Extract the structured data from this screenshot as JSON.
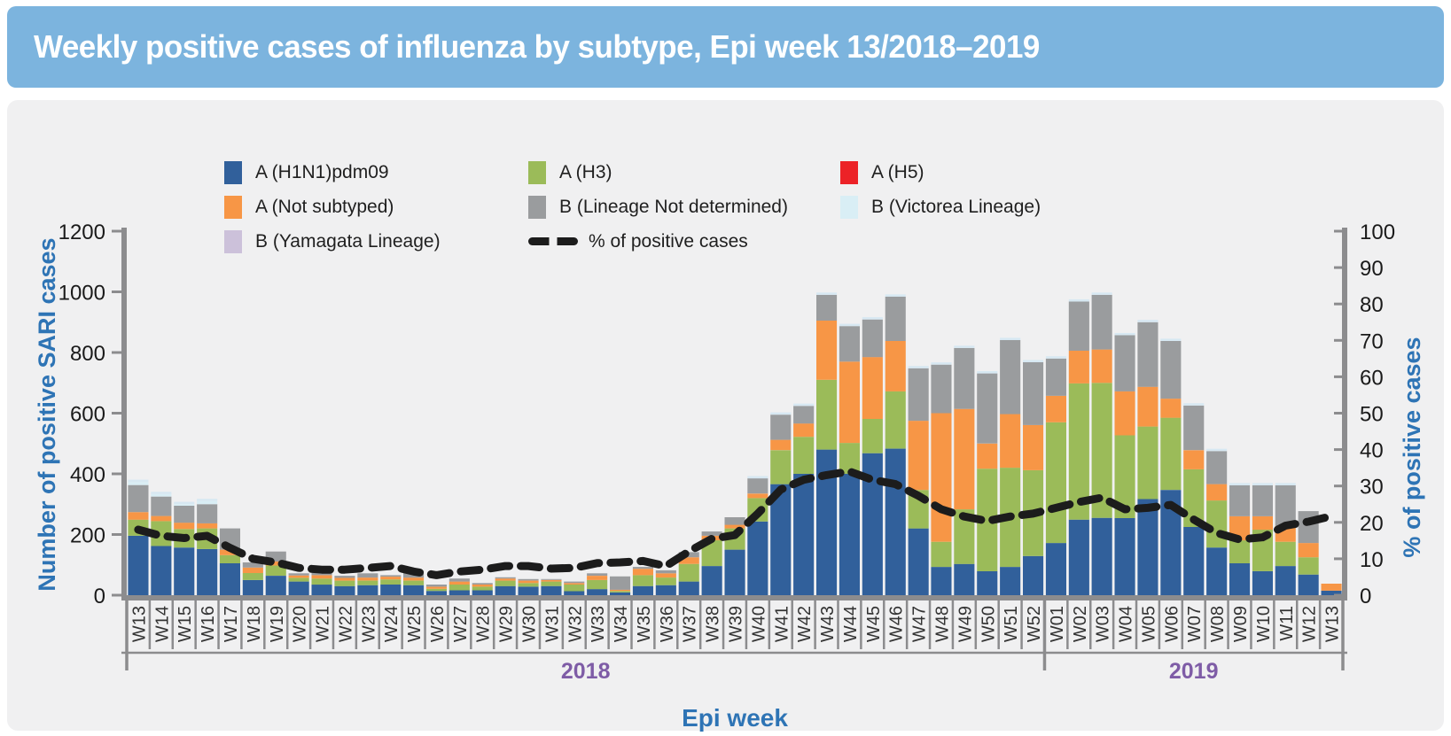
{
  "header": {
    "title": "Weekly positive cases of influenza by subtype, Epi week 13/2018–2019"
  },
  "legend": {
    "items": [
      {
        "label": "A (H1N1)pdm09",
        "color": "#31609B",
        "style": "box"
      },
      {
        "label": "A (H3)",
        "color": "#9BBB59",
        "style": "box"
      },
      {
        "label": "A (H5)",
        "color": "#EC2227",
        "style": "box"
      },
      {
        "label": "A (Not subtyped)",
        "color": "#F79646",
        "style": "box"
      },
      {
        "label": "B (Lineage Not determined)",
        "color": "#9A9C9E",
        "style": "box"
      },
      {
        "label": "B (Victorea Lineage)",
        "color": "#D9EEF5",
        "style": "box"
      },
      {
        "label": "B (Yamagata Lineage)",
        "color": "#CCC1DA",
        "style": "box"
      },
      {
        "label": "% of positive cases",
        "color": "#1C1C1C",
        "style": "dash"
      }
    ]
  },
  "axes": {
    "left": {
      "title": "Number of  positive SARI cases",
      "max": 1200,
      "tick_values": [
        0,
        200,
        400,
        600,
        800,
        1000,
        1200
      ]
    },
    "right": {
      "title": "% of positive cases",
      "max": 100,
      "tick_values": [
        0,
        10,
        20,
        30,
        40,
        50,
        60,
        70,
        80,
        90,
        100
      ]
    },
    "x": {
      "title": "Epi week",
      "year_groups": [
        {
          "label": "2018",
          "n_weeks": 40
        },
        {
          "label": "2019",
          "n_weeks": 13
        }
      ]
    }
  },
  "colors": {
    "header_bg": "#7CB4DE",
    "header_text": "#FFFFFF",
    "card_bg": "#F0F0F1",
    "axis_line": "#8C8C8E",
    "axis_title": "#2E74B5",
    "tick_text": "#1A1A1A",
    "week_label": "#333333",
    "year_label": "#7E5CA6",
    "percent_line": "#1C1C1C",
    "bar_top_highlight": "#D7E8F2"
  },
  "chart_data": {
    "type": "bar",
    "subtype": "stacked-bars-with-percent-line",
    "title": "Weekly positive cases of influenza by subtype, Epi week 13/2018–2019",
    "xlabel": "Epi week",
    "ylabel_left": "Number of  positive SARI cases",
    "ylabel_right": "% of positive cases",
    "ylim_left": [
      0,
      1200
    ],
    "ylim_right": [
      0,
      100
    ],
    "grid": false,
    "legend_position": "top",
    "categories": [
      "W13",
      "W14",
      "W15",
      "W16",
      "W17",
      "W18",
      "W19",
      "W20",
      "W21",
      "W22",
      "W23",
      "W24",
      "W25",
      "W26",
      "W27",
      "W28",
      "W29",
      "W30",
      "W31",
      "W32",
      "W33",
      "W34",
      "W35",
      "W36",
      "W37",
      "W38",
      "W39",
      "W40",
      "W41",
      "W42",
      "W43",
      "W44",
      "W45",
      "W46",
      "W47",
      "W48",
      "W49",
      "W50",
      "W51",
      "W52",
      "W01",
      "W02",
      "W03",
      "W04",
      "W05",
      "W06",
      "W07",
      "W08",
      "W09",
      "W10",
      "W11",
      "W12",
      "W13"
    ],
    "series": [
      {
        "name": "A (H1N1)pdm09",
        "color": "#31609B",
        "values": [
          196,
          162,
          157,
          152,
          105,
          50,
          64,
          45,
          35,
          30,
          33,
          35,
          33,
          14,
          16,
          16,
          30,
          28,
          30,
          13,
          20,
          9,
          30,
          33,
          45,
          96,
          150,
          243,
          366,
          400,
          480,
          400,
          468,
          483,
          220,
          93,
          103,
          79,
          93,
          129,
          172,
          249,
          255,
          254,
          317,
          347,
          225,
          157,
          105,
          79,
          96,
          68,
          15
        ]
      },
      {
        "name": "A (H3)",
        "color": "#9BBB59",
        "values": [
          53,
          82,
          61,
          68,
          27,
          23,
          34,
          12,
          20,
          18,
          15,
          17,
          15,
          7,
          19,
          12,
          18,
          12,
          15,
          22,
          30,
          5,
          36,
          25,
          58,
          85,
          70,
          77,
          112,
          122,
          230,
          102,
          113,
          189,
          127,
          83,
          180,
          338,
          327,
          283,
          398,
          449,
          445,
          273,
          239,
          238,
          190,
          155,
          76,
          137,
          80,
          57,
          0
        ]
      },
      {
        "name": "A (H5)",
        "color": "#EC2227",
        "values": [
          0,
          0,
          0,
          0,
          0,
          0,
          0,
          0,
          0,
          0,
          0,
          0,
          0,
          0,
          0,
          0,
          0,
          0,
          0,
          0,
          0,
          0,
          0,
          0,
          0,
          0,
          0,
          0,
          0,
          0,
          0,
          0,
          0,
          0,
          0,
          0,
          0,
          0,
          0,
          0,
          0,
          0,
          0,
          0,
          0,
          0,
          0,
          0,
          0,
          0,
          0,
          0,
          0
        ]
      },
      {
        "name": "A (Not subtyped)",
        "color": "#F79646",
        "values": [
          25,
          17,
          21,
          17,
          18,
          18,
          13,
          8,
          11,
          9,
          10,
          9,
          10,
          7,
          10,
          7,
          7,
          8,
          5,
          5,
          14,
          4,
          21,
          14,
          22,
          15,
          12,
          15,
          34,
          44,
          195,
          268,
          204,
          166,
          228,
          424,
          331,
          83,
          177,
          149,
          87,
          108,
          110,
          145,
          131,
          63,
          63,
          54,
          79,
          44,
          52,
          47,
          23
        ]
      },
      {
        "name": "B (Lineage Not determined)",
        "color": "#9A9C9E",
        "values": [
          89,
          64,
          56,
          63,
          70,
          17,
          33,
          7,
          13,
          7,
          14,
          5,
          23,
          7,
          10,
          5,
          4,
          5,
          3,
          5,
          8,
          44,
          6,
          10,
          17,
          14,
          25,
          50,
          83,
          58,
          85,
          117,
          124,
          146,
          173,
          160,
          201,
          231,
          244,
          207,
          123,
          162,
          180,
          185,
          213,
          190,
          147,
          109,
          102,
          102,
          134,
          105,
          0
        ]
      },
      {
        "name": "B (Victorea Lineage)",
        "color": "#D9EEF5",
        "values": [
          10,
          8,
          5,
          10,
          0,
          0,
          0,
          0,
          0,
          0,
          0,
          0,
          0,
          0,
          0,
          0,
          0,
          0,
          0,
          0,
          0,
          0,
          0,
          0,
          0,
          0,
          0,
          0,
          0,
          0,
          0,
          0,
          0,
          0,
          0,
          0,
          0,
          0,
          0,
          0,
          0,
          0,
          0,
          0,
          0,
          0,
          0,
          0,
          0,
          0,
          0,
          0,
          0
        ]
      },
      {
        "name": "B (Yamagata Lineage)",
        "color": "#CCC1DA",
        "values": [
          0,
          0,
          0,
          0,
          0,
          0,
          0,
          0,
          0,
          0,
          0,
          0,
          0,
          0,
          0,
          0,
          0,
          0,
          0,
          0,
          0,
          0,
          0,
          0,
          0,
          0,
          0,
          0,
          0,
          0,
          0,
          0,
          0,
          0,
          0,
          0,
          0,
          0,
          0,
          0,
          0,
          0,
          0,
          0,
          0,
          0,
          0,
          0,
          0,
          0,
          0,
          0,
          0
        ]
      }
    ],
    "line_series": {
      "name": "% of positive cases",
      "axis": "right",
      "color": "#1C1C1C",
      "dashed": true,
      "values": [
        18,
        16.3,
        15.7,
        16.3,
        13,
        10,
        9,
        7.5,
        7,
        7,
        7.5,
        8,
        6.5,
        5.5,
        6.5,
        7,
        8,
        8,
        7.3,
        7.5,
        8.8,
        9,
        9.4,
        8,
        12,
        15.5,
        16.5,
        22.4,
        29,
        31.7,
        33,
        34,
        31.7,
        30.5,
        27.3,
        23.6,
        21.6,
        20.4,
        21.6,
        22.4,
        24,
        25.6,
        26.8,
        23.6,
        24,
        24.8,
        20.8,
        17.1,
        15.3,
        15.9,
        19.1,
        20.2,
        21.7
      ]
    },
    "x_axis_years": [
      {
        "label": "2018",
        "weeks": "W13–W52"
      },
      {
        "label": "2019",
        "weeks": "W01–W13"
      }
    ]
  }
}
